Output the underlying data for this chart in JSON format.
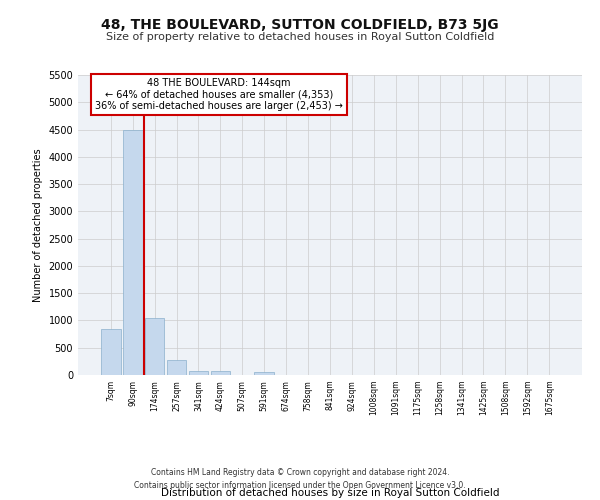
{
  "title1": "48, THE BOULEVARD, SUTTON COLDFIELD, B73 5JG",
  "title2": "Size of property relative to detached houses in Royal Sutton Coldfield",
  "xlabel": "Distribution of detached houses by size in Royal Sutton Coldfield",
  "ylabel": "Number of detached properties",
  "footer1": "Contains HM Land Registry data © Crown copyright and database right 2024.",
  "footer2": "Contains public sector information licensed under the Open Government Licence v3.0.",
  "annotation_title": "48 THE BOULEVARD: 144sqm",
  "annotation_line1": "← 64% of detached houses are smaller (4,353)",
  "annotation_line2": "36% of semi-detached houses are larger (2,453) →",
  "property_size": 144,
  "red_line_x": 1.5,
  "categories": [
    "7sqm",
    "90sqm",
    "174sqm",
    "257sqm",
    "341sqm",
    "424sqm",
    "507sqm",
    "591sqm",
    "674sqm",
    "758sqm",
    "841sqm",
    "924sqm",
    "1008sqm",
    "1091sqm",
    "1175sqm",
    "1258sqm",
    "1341sqm",
    "1425sqm",
    "1508sqm",
    "1592sqm",
    "1675sqm"
  ],
  "values": [
    850,
    4500,
    1050,
    270,
    80,
    65,
    0,
    60,
    0,
    0,
    0,
    0,
    0,
    0,
    0,
    0,
    0,
    0,
    0,
    0,
    0
  ],
  "bar_color": "#c5d8ed",
  "bar_edge_color": "#8ab0cc",
  "red_line_color": "#cc0000",
  "grid_color": "#cccccc",
  "bg_color": "#eef2f7",
  "annotation_box_color": "#ffffff",
  "annotation_border_color": "#cc0000",
  "ylim": [
    0,
    5500
  ],
  "yticks": [
    0,
    500,
    1000,
    1500,
    2000,
    2500,
    3000,
    3500,
    4000,
    4500,
    5000,
    5500
  ]
}
